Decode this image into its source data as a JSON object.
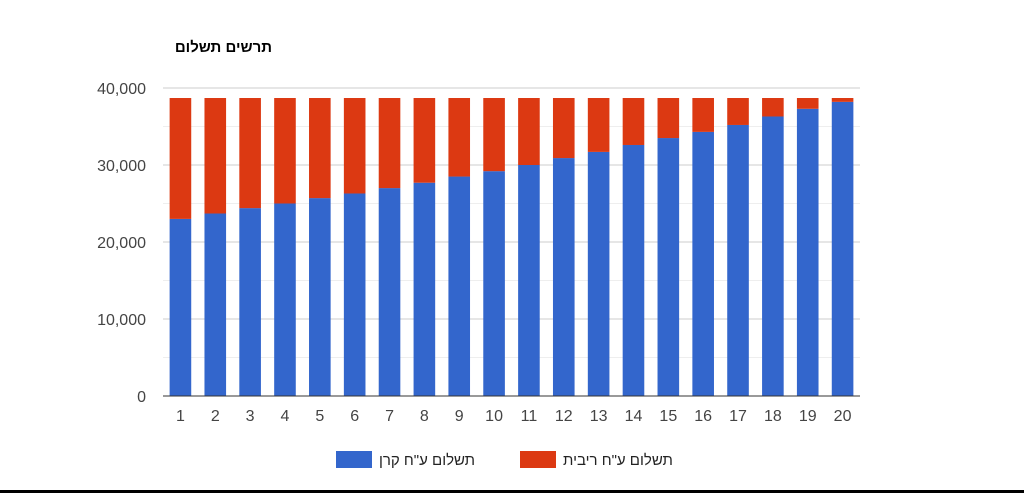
{
  "chart_data": {
    "type": "bar",
    "stacked": true,
    "title": "תרשים תשלום",
    "xlabel": "",
    "ylabel": "",
    "ylim": [
      0,
      40000
    ],
    "yticks": [
      0,
      10000,
      20000,
      30000,
      40000
    ],
    "ytick_labels": [
      "0",
      "10,000",
      "20,000",
      "30,000",
      "40,000"
    ],
    "grid": true,
    "legend_position": "bottom",
    "categories": [
      "1",
      "2",
      "3",
      "4",
      "5",
      "6",
      "7",
      "8",
      "9",
      "10",
      "11",
      "12",
      "13",
      "14",
      "15",
      "16",
      "17",
      "18",
      "19",
      "20"
    ],
    "series": [
      {
        "name": "תשלום ע\"ח קרן",
        "color": "#3366cc",
        "values": [
          23000,
          23700,
          24400,
          25000,
          25700,
          26300,
          27000,
          27700,
          28500,
          29200,
          30000,
          30900,
          31700,
          32600,
          33500,
          34300,
          35200,
          36300,
          37300,
          38200
        ]
      },
      {
        "name": "תשלום ע\"ח ריבית",
        "color": "#dc3912",
        "values": [
          15700,
          15000,
          14300,
          13700,
          13000,
          12400,
          11700,
          11000,
          10200,
          9500,
          8700,
          7800,
          7000,
          6100,
          5200,
          4400,
          3500,
          2400,
          1400,
          500
        ]
      }
    ]
  }
}
